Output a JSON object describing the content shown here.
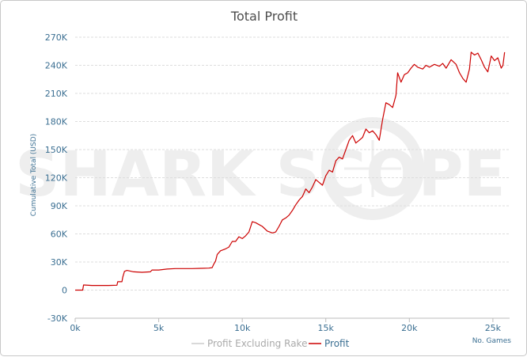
{
  "chart_data": {
    "type": "line",
    "title": "Total Profit",
    "ylabel": "Cumulative Total (USD)",
    "xlabel": "No. Games",
    "watermark": "SHARK SCOPE",
    "xlim": [
      0,
      26000
    ],
    "ylim": [
      -30000,
      270000
    ],
    "x_ticks": [
      0,
      5000,
      10000,
      15000,
      20000,
      25000
    ],
    "x_tick_labels": [
      "0k",
      "5k",
      "10k",
      "15k",
      "20k",
      "25k"
    ],
    "y_ticks": [
      -30000,
      0,
      30000,
      60000,
      90000,
      120000,
      150000,
      180000,
      210000,
      240000,
      270000
    ],
    "y_tick_labels": [
      "-30K",
      "0",
      "30K",
      "60K",
      "90K",
      "120K",
      "150K",
      "180K",
      "210K",
      "240K",
      "270K"
    ],
    "grid": true,
    "legend": "bottom-center",
    "series": [
      {
        "name": "Profit Excluding Rake",
        "color": "#cccccc",
        "points": []
      },
      {
        "name": "Profit",
        "color": "#cc0000",
        "points": [
          [
            0,
            0
          ],
          [
            450,
            0
          ],
          [
            500,
            5500
          ],
          [
            1000,
            5000
          ],
          [
            2000,
            5000
          ],
          [
            2500,
            5200
          ],
          [
            2550,
            9000
          ],
          [
            2800,
            9000
          ],
          [
            2850,
            14000
          ],
          [
            2950,
            20000
          ],
          [
            3100,
            21000
          ],
          [
            3500,
            19500
          ],
          [
            4000,
            19000
          ],
          [
            4500,
            19500
          ],
          [
            4600,
            21500
          ],
          [
            5000,
            21500
          ],
          [
            5500,
            22500
          ],
          [
            6000,
            23000
          ],
          [
            7000,
            23000
          ],
          [
            7500,
            23200
          ],
          [
            8000,
            23500
          ],
          [
            8200,
            24000
          ],
          [
            8300,
            28000
          ],
          [
            8400,
            31000
          ],
          [
            8500,
            38000
          ],
          [
            8700,
            42000
          ],
          [
            9000,
            44000
          ],
          [
            9200,
            46000
          ],
          [
            9400,
            52000
          ],
          [
            9600,
            52000
          ],
          [
            9800,
            57000
          ],
          [
            10000,
            55000
          ],
          [
            10200,
            58000
          ],
          [
            10400,
            62000
          ],
          [
            10600,
            73000
          ],
          [
            10800,
            72000
          ],
          [
            11000,
            70000
          ],
          [
            11200,
            68000
          ],
          [
            11500,
            63000
          ],
          [
            11800,
            61000
          ],
          [
            12000,
            62000
          ],
          [
            12200,
            68000
          ],
          [
            12400,
            75000
          ],
          [
            12600,
            77000
          ],
          [
            12800,
            80000
          ],
          [
            13000,
            85000
          ],
          [
            13200,
            91000
          ],
          [
            13400,
            96000
          ],
          [
            13600,
            100000
          ],
          [
            13800,
            108000
          ],
          [
            14000,
            104000
          ],
          [
            14200,
            110000
          ],
          [
            14400,
            118000
          ],
          [
            14600,
            115000
          ],
          [
            14800,
            112000
          ],
          [
            15000,
            122000
          ],
          [
            15200,
            128000
          ],
          [
            15400,
            126000
          ],
          [
            15600,
            138000
          ],
          [
            15800,
            142000
          ],
          [
            16000,
            140000
          ],
          [
            16200,
            150000
          ],
          [
            16400,
            160000
          ],
          [
            16600,
            165000
          ],
          [
            16800,
            157000
          ],
          [
            17000,
            160000
          ],
          [
            17200,
            163000
          ],
          [
            17400,
            172000
          ],
          [
            17600,
            168000
          ],
          [
            17800,
            170000
          ],
          [
            18000,
            166000
          ],
          [
            18200,
            160000
          ],
          [
            18400,
            182000
          ],
          [
            18600,
            200000
          ],
          [
            18800,
            198000
          ],
          [
            19000,
            195000
          ],
          [
            19200,
            208000
          ],
          [
            19300,
            232000
          ],
          [
            19500,
            222000
          ],
          [
            19700,
            230000
          ],
          [
            19900,
            232000
          ],
          [
            20100,
            237000
          ],
          [
            20300,
            241000
          ],
          [
            20500,
            238000
          ],
          [
            20800,
            236000
          ],
          [
            21000,
            240000
          ],
          [
            21200,
            238000
          ],
          [
            21500,
            241000
          ],
          [
            21800,
            239000
          ],
          [
            22000,
            242000
          ],
          [
            22200,
            237000
          ],
          [
            22500,
            246000
          ],
          [
            22800,
            241000
          ],
          [
            23000,
            232000
          ],
          [
            23200,
            226000
          ],
          [
            23400,
            222000
          ],
          [
            23600,
            236000
          ],
          [
            23700,
            254000
          ],
          [
            23900,
            251000
          ],
          [
            24100,
            253000
          ],
          [
            24300,
            246000
          ],
          [
            24500,
            238000
          ],
          [
            24700,
            233000
          ],
          [
            24900,
            250000
          ],
          [
            25100,
            245000
          ],
          [
            25300,
            248000
          ],
          [
            25500,
            237000
          ],
          [
            25600,
            240000
          ],
          [
            25700,
            254000
          ]
        ]
      }
    ]
  }
}
